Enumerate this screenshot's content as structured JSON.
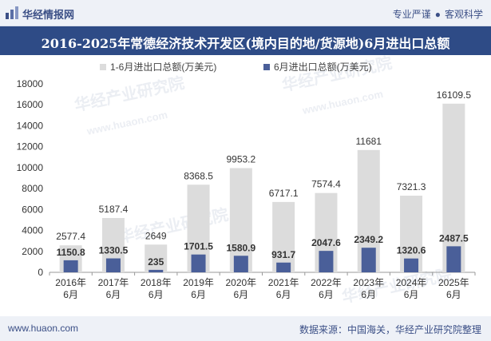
{
  "header": {
    "brand": "华经情报网",
    "slogan_left": "专业严谨",
    "slogan_sep": "●",
    "slogan_right": "客观科学"
  },
  "footer": {
    "url": "www.huaon.com",
    "source": "数据来源：中国海关，华经产业研究院整理"
  },
  "watermark": "华经产业研究院",
  "watermark_url": "www.huaon.com",
  "colors": {
    "header_bg": "#eef1f7",
    "title_bg": "#2e4b86",
    "bar_back": "#dcdcdc",
    "bar_front": "#4a5f99",
    "brand_blue": "#3b4f86"
  },
  "chart_data": {
    "type": "bar",
    "title": "2016-2025年常德经济技术开发区(境内目的地/货源地)6月进出口总额",
    "categories": [
      "2016年\n6月",
      "2017年\n6月",
      "2018年\n6月",
      "2019年\n6月",
      "2020年\n6月",
      "2021年\n6月",
      "2022年\n6月",
      "2023年\n6月",
      "2024年\n6月",
      "2025年\n6月"
    ],
    "series": [
      {
        "name": "1-6月进出口总额(万美元)",
        "values": [
          2577.4,
          5187.4,
          2649,
          8368.5,
          9953.2,
          6717.1,
          7574.4,
          11681,
          7321.3,
          16109.5
        ],
        "labels": [
          "2577.4",
          "5187.4",
          "2649",
          "8368.5",
          "9953.2",
          "6717.1",
          "7574.4",
          "11681",
          "7321.3",
          "16109.5"
        ],
        "color": "#dcdcdc"
      },
      {
        "name": "6月进出口总额(万美元)",
        "values": [
          1150.8,
          1330.5,
          235,
          1701.5,
          1580.9,
          931.7,
          2047.6,
          2349.2,
          1320.6,
          2487.5
        ],
        "labels": [
          "1150.8",
          "1330.5",
          "235",
          "1701.5",
          "1580.9",
          "931.7",
          "2047.6",
          "2349.2",
          "1320.6",
          "2487.5"
        ],
        "color": "#4a5f99"
      }
    ],
    "yticks": [
      "0",
      "2000",
      "4000",
      "6000",
      "8000",
      "10000",
      "12000",
      "14000",
      "16000",
      "18000"
    ],
    "ylim": [
      0,
      18000
    ],
    "grid": false,
    "legend": "top-center"
  }
}
